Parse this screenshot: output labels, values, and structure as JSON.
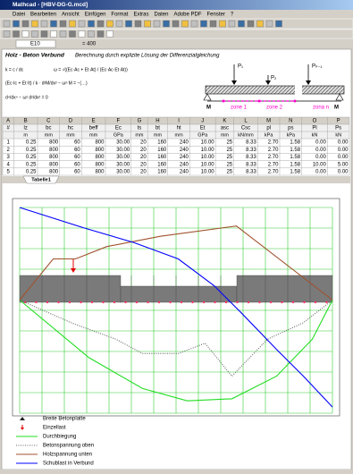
{
  "window": {
    "title": "Mathcad - [HBV-DG-G.mcd]",
    "menu": [
      "Datei",
      "Bearbeiten",
      "Ansicht",
      "Einfügen",
      "Format",
      "Extras",
      "Daten",
      "Adobe PDF",
      "Fenster",
      "?"
    ]
  },
  "formula_bar": {
    "cell": "E10",
    "value": "= 400"
  },
  "heading": {
    "title": "Holz - Beton Verbund",
    "subtitle": "Berechnung durch explizite Lösung der Differenzialgleichung"
  },
  "formulas": [
    "k = c / dc",
    "ω = √((Ec·Ac + Et·At) / (Ec·Ac·Et·At))",
    "(Ec·Ic + Et·It) / k · d²M/dx² − ω²·M = −(…)",
    "d⁴/dx⁴ − ω² d²/dx² = 0"
  ],
  "beam": {
    "loads": [
      "P₁",
      "P₂",
      "Pₙ₋₁"
    ],
    "zones": [
      "zone 1",
      "zone 2",
      "zona n"
    ],
    "moment": "M"
  },
  "table": {
    "columns": [
      "A",
      "B",
      "C",
      "D",
      "E",
      "F",
      "G",
      "H",
      "I",
      "J",
      "K",
      "L",
      "M",
      "N",
      "O",
      "P"
    ],
    "header": [
      "#",
      "lz",
      "bc",
      "hc",
      "beff",
      "Ec",
      "ts",
      "bt",
      "ht",
      "Et",
      "asc",
      "Csc",
      "pl",
      "ps",
      "Pl",
      "Ps"
    ],
    "units": [
      "m",
      "mm",
      "mm",
      "mm",
      "GPa",
      "mm",
      "mm",
      "mm",
      "GPa",
      "mm",
      "kN/mm",
      "kPa",
      "kPa",
      "kN",
      "kN"
    ],
    "rows": [
      [
        "1",
        "0.25",
        "800",
        "60",
        "800",
        "30.00",
        "20",
        "160",
        "240",
        "10.00",
        "25",
        "8.33",
        "2.70",
        "1.58",
        "0.00",
        "0.00"
      ],
      [
        "2",
        "0.25",
        "800",
        "60",
        "800",
        "30.00",
        "20",
        "160",
        "240",
        "10.00",
        "25",
        "8.33",
        "2.70",
        "1.58",
        "0.00",
        "0.00"
      ],
      [
        "3",
        "0.25",
        "800",
        "60",
        "800",
        "30.00",
        "20",
        "160",
        "240",
        "10.00",
        "25",
        "8.33",
        "2.70",
        "1.58",
        "0.00",
        "0.00"
      ],
      [
        "4",
        "0.25",
        "800",
        "60",
        "800",
        "30.00",
        "20",
        "160",
        "240",
        "10.00",
        "25",
        "8.33",
        "2.70",
        "1.58",
        "10.00",
        "5.00"
      ],
      [
        "5",
        "0.25",
        "800",
        "60",
        "800",
        "30.00",
        "20",
        "160",
        "240",
        "10.00",
        "25",
        "8.33",
        "2.70",
        "1.58",
        "0.00",
        "0.00"
      ]
    ]
  },
  "sheet_tab": "Tabelle1",
  "chart_data": {
    "type": "line",
    "xlim": [
      0,
      14
    ],
    "ylim": [
      0,
      10
    ],
    "xticks": [
      0,
      1,
      2,
      3,
      4,
      5,
      6,
      7,
      8,
      9,
      10,
      11,
      12,
      13,
      14
    ],
    "yticks": [
      0,
      1,
      2,
      3,
      4,
      5,
      6,
      7,
      8,
      9,
      10
    ],
    "grid": true,
    "grid_color": "#33cc33",
    "slab": {
      "name": "Breite Betonplatte",
      "color": "#7a7a7a"
    },
    "load": {
      "name": "Einzellast",
      "color": "#e00000"
    },
    "series": [
      {
        "name": "Durchbiegung",
        "color": "#22dd22",
        "style": "solid",
        "x": [
          0,
          3.1,
          5.5,
          7.5,
          9.5,
          11.5,
          13.1,
          14
        ],
        "values": [
          5.5,
          2.7,
          1.2,
          0.6,
          0.7,
          1.8,
          3.6,
          5.5
        ]
      },
      {
        "name": "Betonspannung oben",
        "color": "#666666",
        "style": "dotted",
        "x": [
          0,
          2.3,
          4.3,
          5.5,
          7.1,
          8.3,
          9.5,
          11.1,
          12.7,
          14
        ],
        "values": [
          5.5,
          4.4,
          3.6,
          2.9,
          2.9,
          3.4,
          1.8,
          3.6,
          4.4,
          5.5
        ]
      },
      {
        "name": "Holzspannung unten",
        "color": "#a0522d",
        "style": "solid",
        "x": [
          0,
          1.5,
          2.5,
          3.9,
          6.3,
          9.7,
          14
        ],
        "values": [
          5.5,
          7.5,
          7.5,
          8.1,
          8.6,
          9.1,
          5.5
        ]
      },
      {
        "name": "Schublast in Verbund",
        "color": "#0000ff",
        "style": "solid",
        "x": [
          0,
          2.9,
          5.1,
          7.1,
          8.7,
          9.9,
          11.5,
          12.7,
          14
        ],
        "values": [
          10,
          9,
          8.3,
          7.5,
          6.2,
          4.9,
          3.1,
          1.8,
          0.3
        ]
      }
    ]
  }
}
